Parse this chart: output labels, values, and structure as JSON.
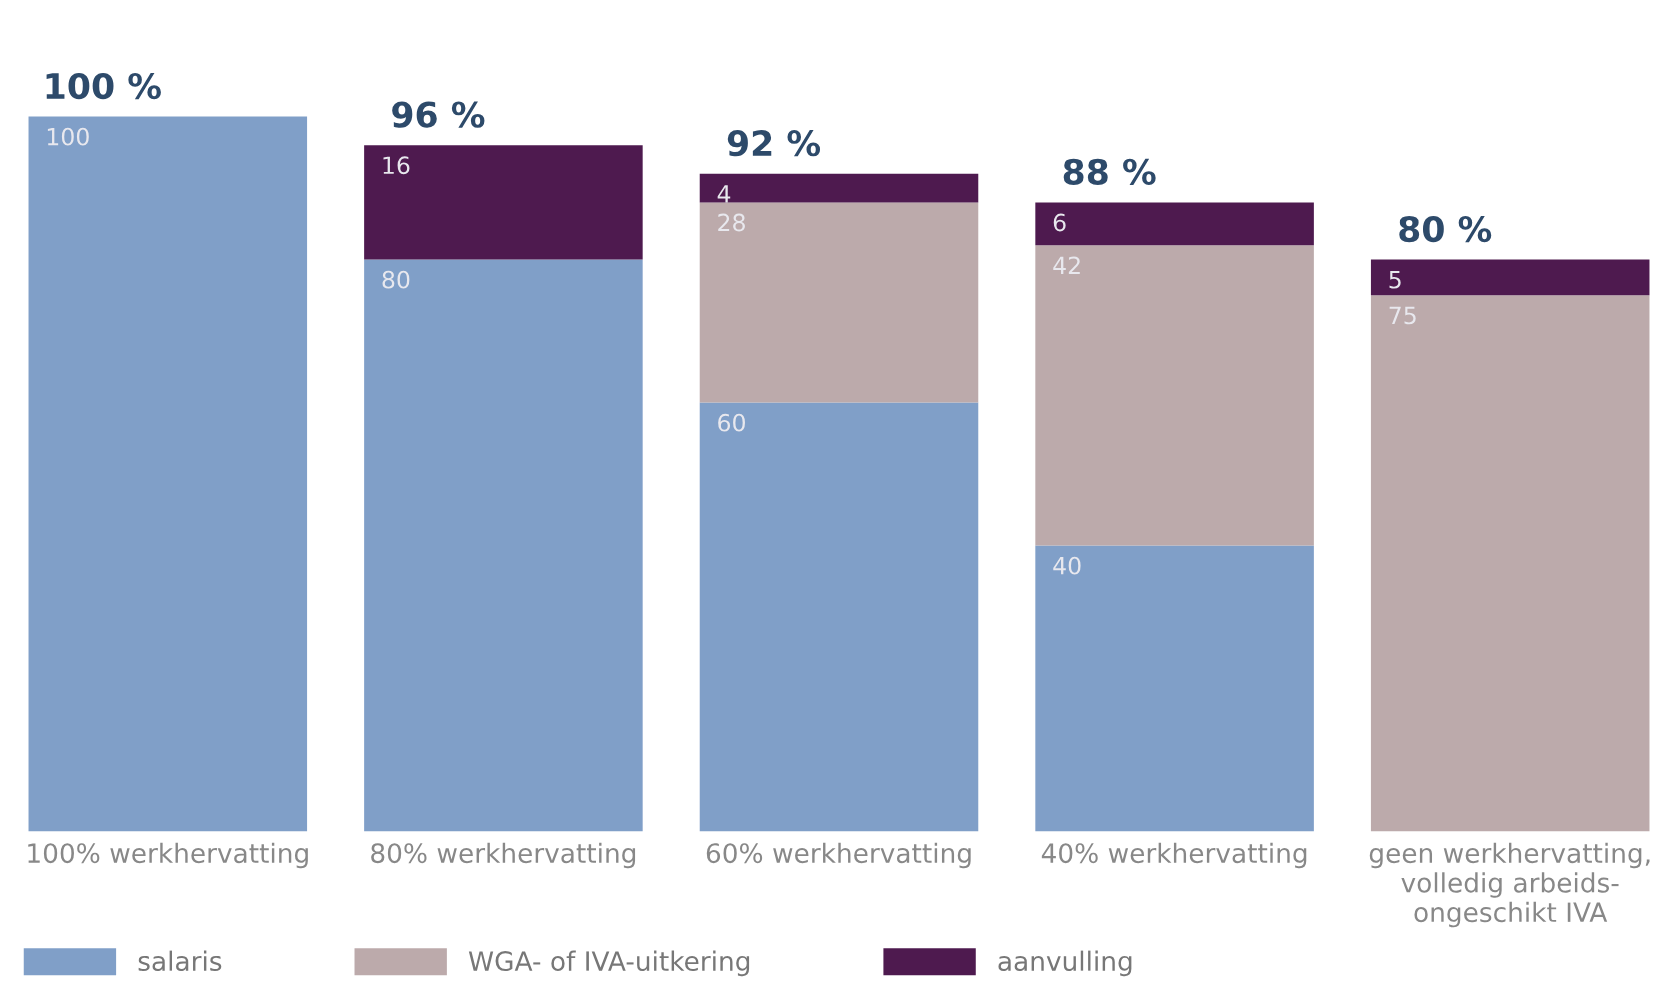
{
  "chart_data": {
    "type": "bar",
    "stacked": true,
    "data_labels": true,
    "legend": "bottom left",
    "grid": false,
    "categories": [
      "100% werkhervatting",
      "80% werkhervatting",
      "60% werkhervatting",
      "40% werkhervatting",
      "geen werkhervatting,\nvolledig arbeids-\nongeschikt IVA"
    ],
    "series": [
      {
        "name": "salaris",
        "color": "#809fc8",
        "values": [
          100,
          80,
          60,
          40,
          null
        ]
      },
      {
        "name": "WGA- of IVA-uitkering",
        "color": "#bcaaab",
        "values": [
          null,
          null,
          28,
          42,
          75
        ]
      },
      {
        "name": "aanvulling",
        "color": "#4e1a4f",
        "values": [
          null,
          16,
          4,
          6,
          5
        ]
      }
    ],
    "totals": [
      "100 %",
      "96 %",
      "92 %",
      "88 %",
      "80 %"
    ]
  }
}
